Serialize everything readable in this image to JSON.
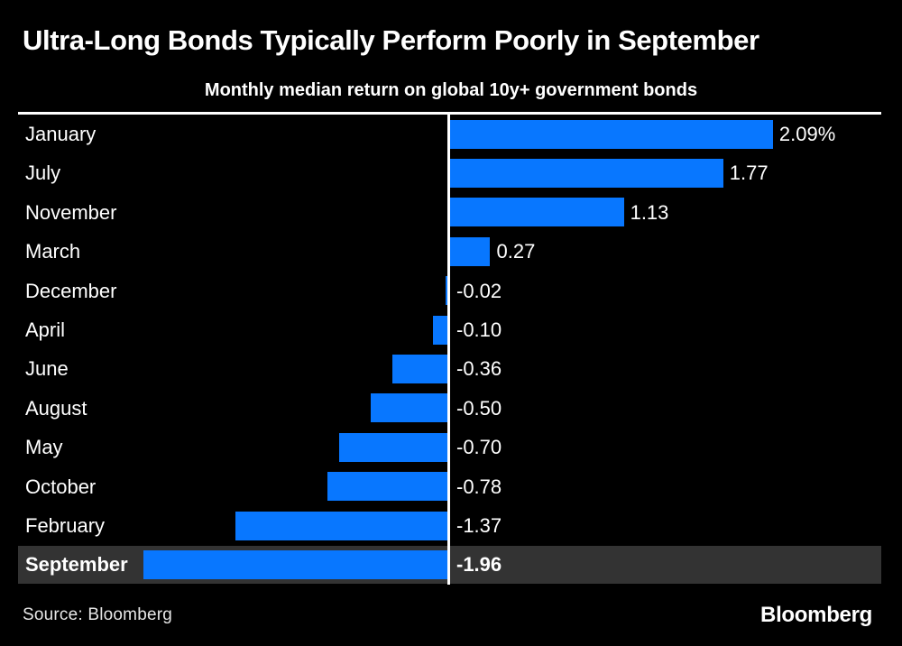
{
  "header": {
    "title": "Ultra-Long Bonds Typically Perform Poorly in September",
    "subtitle": "Monthly median return on global 10y+ government bonds"
  },
  "chart_data": {
    "type": "bar",
    "orientation": "horizontal",
    "title": "Ultra-Long Bonds Typically Perform Poorly in September",
    "subtitle": "Monthly median return on global 10y+ government bonds",
    "unit": "%",
    "categories": [
      "January",
      "July",
      "November",
      "March",
      "December",
      "April",
      "June",
      "August",
      "May",
      "October",
      "February",
      "September"
    ],
    "values": [
      2.09,
      1.77,
      1.13,
      0.27,
      -0.02,
      -0.1,
      -0.36,
      -0.5,
      -0.7,
      -0.78,
      -1.37,
      -1.96
    ],
    "value_labels": [
      "2.09%",
      "1.77",
      "1.13",
      "0.27",
      "-0.02",
      "-0.10",
      "-0.36",
      "-0.50",
      "-0.70",
      "-0.78",
      "-1.37",
      "-1.96"
    ],
    "sort_order": "descending",
    "highlighted_category": "September",
    "xlim": [
      -2.89,
      2.92
    ],
    "grid": false,
    "legend": false,
    "bar_color": "#0877ff",
    "highlight_row_color": "#333333",
    "zero_line_color": "#ffffff",
    "background_color": "#000000",
    "text_color": "#ffffff"
  },
  "footer": {
    "source": "Source: Bloomberg",
    "logo": "Bloomberg"
  }
}
